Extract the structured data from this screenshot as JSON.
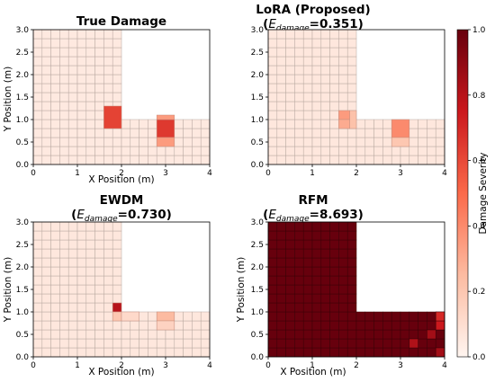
{
  "chart_data": [
    {
      "type": "heatmap",
      "title": "True Damage",
      "xlabel": "X Position (m)",
      "ylabel": "Y Position (m)",
      "xlim": [
        0,
        4
      ],
      "ylim": [
        0,
        3
      ],
      "xticks": [
        "0",
        "1",
        "2",
        "3",
        "4"
      ],
      "yticks": [
        "0.0",
        "0.5",
        "1.0",
        "1.5",
        "2.0",
        "2.5",
        "3.0"
      ],
      "domain_shape": "L-shaped: x 0-2 for y 0-3, x 2-4 for y 0-1",
      "background_severity": 0.05,
      "damaged_cells": [
        {
          "x": [
            1.6,
            2.0
          ],
          "y": [
            0.8,
            1.3
          ],
          "severity": 0.62
        },
        {
          "x": [
            2.8,
            3.2
          ],
          "y": [
            0.6,
            1.0
          ],
          "severity": 0.65
        },
        {
          "x": [
            2.8,
            3.2
          ],
          "y": [
            0.4,
            0.6
          ],
          "severity": 0.35
        },
        {
          "x": [
            2.8,
            3.2
          ],
          "y": [
            1.0,
            1.1
          ],
          "severity": 0.35
        }
      ]
    },
    {
      "type": "heatmap",
      "title": "LoRA (Proposed)",
      "metric_label": "=0.351",
      "xlabel": "",
      "ylabel": "",
      "xlim": [
        0,
        4
      ],
      "ylim": [
        0,
        3
      ],
      "xticks": [
        "0",
        "1",
        "2",
        "3",
        "4"
      ],
      "yticks": [
        "0.0",
        "0.5",
        "1.0",
        "1.5",
        "2.0",
        "2.5",
        "3.0"
      ],
      "background_severity": 0.06,
      "damaged_cells": [
        {
          "x": [
            1.6,
            1.85
          ],
          "y": [
            1.0,
            1.2
          ],
          "severity": 0.35
        },
        {
          "x": [
            1.6,
            1.85
          ],
          "y": [
            0.8,
            1.0
          ],
          "severity": 0.3
        },
        {
          "x": [
            1.85,
            2.0
          ],
          "y": [
            0.8,
            1.2
          ],
          "severity": 0.22
        },
        {
          "x": [
            2.8,
            3.2
          ],
          "y": [
            0.6,
            1.0
          ],
          "severity": 0.4
        },
        {
          "x": [
            2.8,
            3.2
          ],
          "y": [
            0.4,
            0.6
          ],
          "severity": 0.2
        }
      ]
    },
    {
      "type": "heatmap",
      "title": "EWDM",
      "metric_label": "=0.730",
      "xlabel": "X Position (m)",
      "ylabel": "Y Position (m)",
      "xlim": [
        0,
        4
      ],
      "ylim": [
        0,
        3
      ],
      "xticks": [
        "0",
        "1",
        "2",
        "3",
        "4"
      ],
      "yticks": [
        "0.0",
        "0.5",
        "1.0",
        "1.5",
        "2.0",
        "2.5",
        "3.0"
      ],
      "background_severity": 0.06,
      "damaged_cells": [
        {
          "x": [
            1.8,
            2.0
          ],
          "y": [
            1.0,
            1.2
          ],
          "severity": 0.8
        },
        {
          "x": [
            1.8,
            2.0
          ],
          "y": [
            0.8,
            1.0
          ],
          "severity": 0.2
        },
        {
          "x": [
            2.0,
            2.4
          ],
          "y": [
            0.8,
            1.0
          ],
          "severity": 0.12
        },
        {
          "x": [
            2.8,
            3.2
          ],
          "y": [
            0.8,
            1.0
          ],
          "severity": 0.25
        },
        {
          "x": [
            2.8,
            3.2
          ],
          "y": [
            0.6,
            0.8
          ],
          "severity": 0.15
        }
      ]
    },
    {
      "type": "heatmap",
      "title": "RFM",
      "metric_label": "=8.693",
      "xlabel": "X Position (m)",
      "ylabel": "Y Position (m)",
      "xlim": [
        0,
        4
      ],
      "ylim": [
        0,
        3
      ],
      "xticks": [
        "0",
        "1",
        "2",
        "3",
        "4"
      ],
      "yticks": [
        "0.0",
        "0.5",
        "1.0",
        "1.5",
        "2.0",
        "2.5",
        "3.0"
      ],
      "background_severity": 1.0,
      "damaged_cells": [
        {
          "x": [
            3.2,
            3.4
          ],
          "y": [
            0.2,
            0.4
          ],
          "severity": 0.82
        },
        {
          "x": [
            3.6,
            3.8
          ],
          "y": [
            0.4,
            0.6
          ],
          "severity": 0.85
        },
        {
          "x": [
            3.8,
            4.0
          ],
          "y": [
            0.6,
            0.8
          ],
          "severity": 0.75
        },
        {
          "x": [
            3.8,
            4.0
          ],
          "y": [
            0.8,
            1.0
          ],
          "severity": 0.7
        },
        {
          "x": [
            3.8,
            4.0
          ],
          "y": [
            0.0,
            0.2
          ],
          "severity": 0.85
        }
      ]
    }
  ],
  "metric_symbol": {
    "base": "E",
    "subscript": "damage"
  },
  "colorbar": {
    "label": "Damage Severity",
    "ticks": [
      "0.0",
      "0.2",
      "0.4",
      "0.6",
      "0.8",
      "1.0"
    ],
    "range": [
      0,
      1
    ],
    "colors": [
      "#fff5f0",
      "#fcbba1",
      "#fb6a4a",
      "#cb181d",
      "#67000d"
    ]
  }
}
